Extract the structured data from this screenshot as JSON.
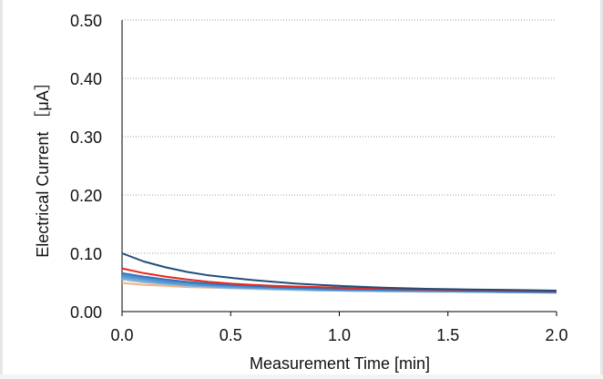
{
  "chart_data": {
    "type": "line",
    "xlabel": "Measurement Time [min]",
    "ylabel": "Electrical Current ［μA］",
    "xlim": [
      0,
      2.0
    ],
    "ylim": [
      0,
      0.5
    ],
    "x_ticks": [
      "0.0",
      "0.5",
      "1.0",
      "1.5",
      "2.0"
    ],
    "y_ticks": [
      "0.00",
      "0.10",
      "0.20",
      "0.30",
      "0.40",
      "0.50"
    ],
    "grid": "horizontal dotted",
    "legend": "none",
    "x": [
      0,
      0.1,
      0.2,
      0.3,
      0.4,
      0.5,
      0.6,
      0.7,
      0.8,
      0.9,
      1.0,
      1.2,
      1.4,
      1.6,
      1.8,
      2.0
    ],
    "series": [
      {
        "color": "#1f4e79",
        "values": [
          0.1,
          0.086,
          0.076,
          0.068,
          0.062,
          0.058,
          0.054,
          0.051,
          0.048,
          0.046,
          0.044,
          0.041,
          0.039,
          0.038,
          0.037,
          0.036
        ]
      },
      {
        "color": "#e8281f",
        "values": [
          0.074,
          0.066,
          0.06,
          0.055,
          0.051,
          0.048,
          0.046,
          0.044,
          0.043,
          0.042,
          0.041,
          0.039,
          0.038,
          0.037,
          0.036,
          0.035
        ]
      },
      {
        "color": "#2e75b6",
        "values": [
          0.066,
          0.06,
          0.055,
          0.051,
          0.048,
          0.046,
          0.044,
          0.042,
          0.041,
          0.04,
          0.039,
          0.038,
          0.037,
          0.036,
          0.035,
          0.034
        ]
      },
      {
        "color": "#4a90d9",
        "values": [
          0.063,
          0.057,
          0.052,
          0.049,
          0.046,
          0.044,
          0.042,
          0.041,
          0.04,
          0.039,
          0.038,
          0.037,
          0.036,
          0.035,
          0.034,
          0.033
        ]
      },
      {
        "color": "#5b9bd5",
        "values": [
          0.06,
          0.055,
          0.05,
          0.047,
          0.045,
          0.043,
          0.041,
          0.04,
          0.039,
          0.038,
          0.037,
          0.036,
          0.035,
          0.034,
          0.034,
          0.033
        ]
      },
      {
        "color": "#7fa7c9",
        "values": [
          0.057,
          0.052,
          0.048,
          0.045,
          0.043,
          0.041,
          0.04,
          0.039,
          0.038,
          0.037,
          0.036,
          0.035,
          0.035,
          0.034,
          0.033,
          0.033
        ]
      },
      {
        "color": "#9dc3e6",
        "values": [
          0.055,
          0.05,
          0.047,
          0.044,
          0.042,
          0.04,
          0.039,
          0.038,
          0.037,
          0.036,
          0.036,
          0.035,
          0.034,
          0.034,
          0.033,
          0.032
        ]
      },
      {
        "color": "#f4b183",
        "values": [
          0.049,
          0.046,
          0.044,
          0.042,
          0.041,
          0.04,
          0.039,
          0.038,
          0.037,
          0.037,
          0.036,
          0.035,
          0.035,
          0.034,
          0.034,
          0.033
        ]
      }
    ]
  }
}
